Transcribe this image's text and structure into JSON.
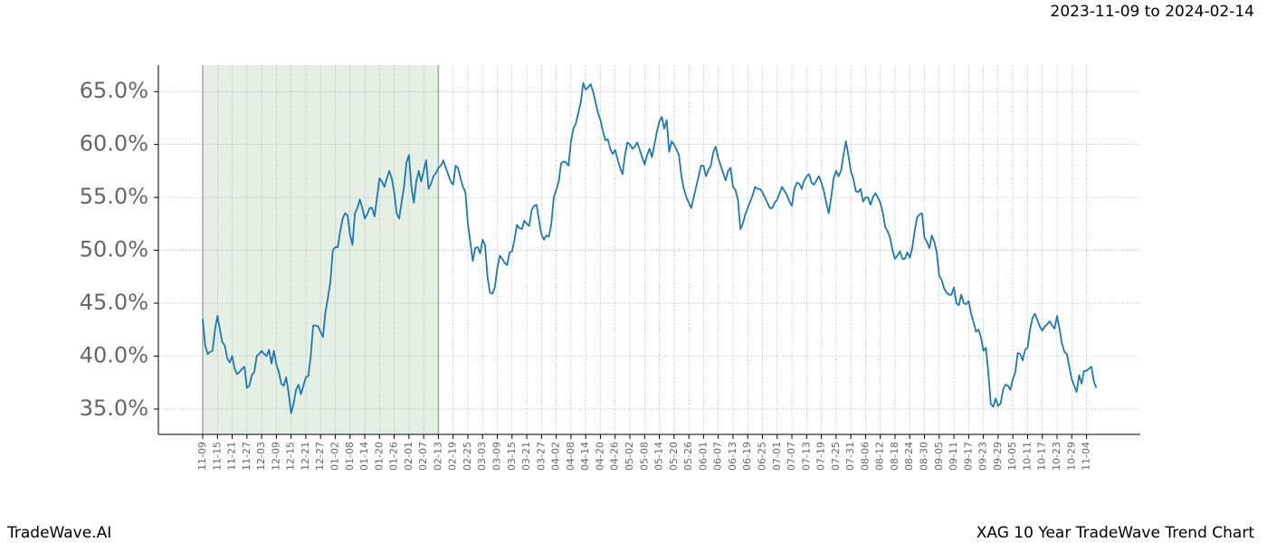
{
  "chart_data": {
    "type": "line",
    "title": "2023-11-09 to 2024-02-14",
    "brand": "TradeWave.AI",
    "caption": "XAG 10 Year TradeWave Trend Chart",
    "highlight": [
      "11-09",
      "02-13"
    ],
    "highlight_color": "#e5f0e5",
    "grid": true,
    "ylim": [
      32.6,
      67.5
    ],
    "yticks": [
      {
        "value": 35,
        "label": "35.0%"
      },
      {
        "value": 40,
        "label": "40.0%"
      },
      {
        "value": 45,
        "label": "45.0%"
      },
      {
        "value": 50,
        "label": "50.0%"
      },
      {
        "value": 55,
        "label": "55.0%"
      },
      {
        "value": 60,
        "label": "60.0%"
      },
      {
        "value": 65,
        "label": "65.0%"
      }
    ],
    "categories": [
      "11-09",
      null,
      null,
      null,
      null,
      null,
      "11-15",
      null,
      null,
      null,
      null,
      null,
      "11-21",
      null,
      null,
      null,
      null,
      null,
      "11-27",
      null,
      null,
      null,
      null,
      null,
      "12-03",
      null,
      null,
      null,
      null,
      null,
      "12-09",
      null,
      null,
      null,
      null,
      null,
      "12-15",
      null,
      null,
      null,
      null,
      null,
      "12-21",
      null,
      null,
      null,
      null,
      null,
      "12-27",
      null,
      null,
      null,
      null,
      null,
      "01-02",
      null,
      null,
      null,
      null,
      null,
      "01-08",
      null,
      null,
      null,
      null,
      null,
      "01-14",
      null,
      null,
      null,
      null,
      null,
      "01-20",
      null,
      null,
      null,
      null,
      null,
      "01-26",
      null,
      null,
      null,
      null,
      null,
      "02-01",
      null,
      null,
      null,
      null,
      null,
      "02-07",
      null,
      null,
      null,
      null,
      null,
      "02-13",
      null,
      null,
      null,
      null,
      null,
      "02-19",
      null,
      null,
      null,
      null,
      null,
      "02-25",
      null,
      null,
      null,
      null,
      null,
      "03-03",
      null,
      null,
      null,
      null,
      null,
      "03-09",
      null,
      null,
      null,
      null,
      null,
      "03-15",
      null,
      null,
      null,
      null,
      null,
      "03-21",
      null,
      null,
      null,
      null,
      null,
      "03-27",
      null,
      null,
      null,
      null,
      null,
      "04-02",
      null,
      null,
      null,
      null,
      null,
      "04-08",
      null,
      null,
      null,
      null,
      null,
      "04-14",
      null,
      null,
      null,
      null,
      null,
      "04-20",
      null,
      null,
      null,
      null,
      null,
      "04-26",
      null,
      null,
      null,
      null,
      null,
      "05-02",
      null,
      null,
      null,
      null,
      null,
      "05-08",
      null,
      null,
      null,
      null,
      null,
      "05-14",
      null,
      null,
      null,
      null,
      null,
      "05-20",
      null,
      null,
      null,
      null,
      null,
      "05-26",
      null,
      null,
      null,
      null,
      null,
      "06-01",
      null,
      null,
      null,
      null,
      null,
      "06-07",
      null,
      null,
      null,
      null,
      null,
      "06-13",
      null,
      null,
      null,
      null,
      null,
      "06-19",
      null,
      null,
      null,
      null,
      null,
      "06-25",
      null,
      null,
      null,
      null,
      null,
      "07-01",
      null,
      null,
      null,
      null,
      null,
      "07-07",
      null,
      null,
      null,
      null,
      null,
      "07-13",
      null,
      null,
      null,
      null,
      null,
      "07-19",
      null,
      null,
      null,
      null,
      null,
      "07-25",
      null,
      null,
      null,
      null,
      null,
      "07-31",
      null,
      null,
      null,
      null,
      null,
      "08-06",
      null,
      null,
      null,
      null,
      null,
      "08-12",
      null,
      null,
      null,
      null,
      null,
      "08-18",
      null,
      null,
      null,
      null,
      null,
      "08-24",
      null,
      null,
      null,
      null,
      null,
      "08-30",
      null,
      null,
      null,
      null,
      null,
      "09-05",
      null,
      null,
      null,
      null,
      null,
      "09-11",
      null,
      null,
      null,
      null,
      null,
      "09-17",
      null,
      null,
      null,
      null,
      null,
      "09-23",
      null,
      null,
      null,
      null,
      null,
      "09-29",
      null,
      null,
      null,
      null,
      null,
      "10-05",
      null,
      null,
      null,
      null,
      null,
      "10-11",
      null,
      null,
      null,
      null,
      null,
      "10-17",
      null,
      null,
      null,
      null,
      null,
      "10-23",
      null,
      null,
      null,
      null,
      null,
      "10-29",
      null,
      null,
      null,
      null,
      null,
      "11-04",
      null,
      null,
      null,
      null
    ],
    "series": [
      {
        "name": "XAG",
        "color": "#1f77b4",
        "values": [
          43.5,
          41.0,
          40.2,
          40.4,
          40.5,
          42.5,
          43.8,
          42.5,
          41.3,
          41.0,
          39.8,
          39.4,
          40.0,
          38.8,
          38.3,
          38.5,
          38.8,
          39.0,
          37.0,
          37.2,
          38.2,
          38.5,
          40.0,
          40.2,
          40.5,
          40.2,
          40.0,
          40.6,
          39.3,
          40.5,
          39.2,
          38.5,
          37.4,
          37.2,
          38.0,
          36.5,
          34.6,
          35.5,
          36.8,
          37.3,
          36.4,
          37.2,
          38.0,
          38.1,
          40.0,
          42.9,
          42.9,
          42.8,
          42.3,
          41.8,
          44.2,
          45.5,
          47.0,
          50.0,
          50.3,
          50.3,
          51.8,
          53.0,
          53.5,
          53.3,
          51.5,
          50.5,
          53.5,
          54.0,
          54.8,
          54.0,
          53.0,
          53.4,
          54.0,
          54.0,
          53.2,
          55.0,
          56.8,
          56.5,
          56.0,
          56.8,
          57.5,
          56.8,
          55.5,
          53.5,
          53.0,
          54.5,
          56.0,
          58.3,
          59.0,
          56.0,
          54.5,
          56.5,
          57.5,
          56.5,
          57.5,
          58.5,
          55.8,
          56.3,
          57.0,
          57.3,
          57.8,
          58.0,
          58.5,
          57.8,
          57.2,
          56.5,
          56.2,
          58.0,
          57.8,
          56.8,
          56.0,
          55.5,
          52.5,
          50.8,
          49.0,
          50.2,
          50.3,
          49.7,
          51.0,
          50.5,
          47.5,
          46.0,
          45.9,
          46.5,
          48.3,
          49.5,
          49.2,
          48.8,
          48.6,
          49.8,
          49.9,
          51.0,
          52.4,
          52.1,
          52.0,
          52.8,
          52.5,
          52.3,
          53.8,
          54.2,
          54.3,
          52.8,
          51.5,
          51.0,
          51.4,
          51.3,
          52.5,
          55.0,
          55.7,
          56.5,
          58.2,
          58.4,
          58.3,
          58.0,
          60.3,
          61.5,
          62.0,
          63.0,
          64.0,
          65.8,
          65.2,
          65.4,
          65.7,
          65.0,
          64.0,
          63.0,
          62.3,
          61.3,
          60.4,
          60.5,
          59.6,
          59.1,
          59.5,
          58.6,
          57.8,
          57.2,
          59.0,
          60.2,
          60.0,
          59.6,
          59.8,
          60.2,
          59.5,
          58.8,
          58.1,
          59.0,
          59.6,
          58.8,
          60.0,
          61.2,
          62.2,
          62.6,
          61.5,
          62.3,
          59.3,
          60.3,
          60.0,
          59.5,
          59.0,
          57.0,
          55.8,
          55.0,
          54.5,
          54.0,
          55.0,
          56.0,
          57.0,
          58.0,
          58.0,
          57.0,
          57.6,
          58.0,
          59.3,
          59.8,
          58.7,
          58.0,
          57.3,
          56.6,
          57.5,
          57.8,
          56.0,
          55.7,
          54.8,
          52.0,
          52.5,
          53.4,
          54.0,
          54.6,
          55.2,
          56.0,
          55.8,
          55.8,
          55.5,
          55.0,
          54.5,
          54.0,
          54.0,
          54.5,
          54.8,
          55.4,
          56.0,
          55.6,
          55.2,
          54.6,
          54.2,
          55.8,
          56.4,
          56.3,
          55.8,
          56.6,
          57.0,
          57.2,
          56.4,
          56.2,
          56.6,
          57.0,
          56.4,
          55.6,
          54.5,
          53.5,
          55.0,
          56.8,
          57.5,
          57.0,
          57.5,
          59.0,
          60.3,
          59.0,
          57.5,
          56.8,
          55.6,
          55.5,
          55.8,
          54.6,
          55.0,
          55.0,
          54.3,
          55.0,
          55.4,
          55.0,
          54.5,
          53.6,
          52.2,
          51.8,
          51.2,
          50.0,
          49.2,
          49.5,
          49.9,
          49.2,
          49.2,
          49.8,
          49.3,
          50.2,
          51.8,
          53.1,
          53.4,
          53.5,
          51.2,
          50.8,
          50.2,
          51.4,
          50.8,
          49.8,
          47.6,
          47.2,
          46.4,
          46.0,
          45.8,
          45.8,
          46.5,
          45.0,
          44.8,
          45.8,
          45.0,
          44.9,
          45.2,
          44.0,
          43.2,
          42.3,
          42.5,
          41.8,
          40.5,
          40.8,
          38.5,
          35.5,
          35.2,
          36.0,
          35.3,
          35.5,
          36.8,
          37.3,
          37.2,
          36.8,
          37.8,
          38.5,
          40.3,
          40.2,
          39.6,
          40.6,
          40.8,
          42.5,
          43.6,
          44.0,
          43.4,
          42.8,
          42.4,
          42.8,
          43.0,
          43.3,
          42.9,
          42.6,
          43.8,
          42.6,
          41.2,
          40.4,
          40.2,
          39.0,
          37.8,
          37.2,
          36.6,
          38.2,
          37.4,
          38.6,
          38.6,
          38.8,
          39.0,
          37.6,
          37.0
        ]
      }
    ]
  }
}
